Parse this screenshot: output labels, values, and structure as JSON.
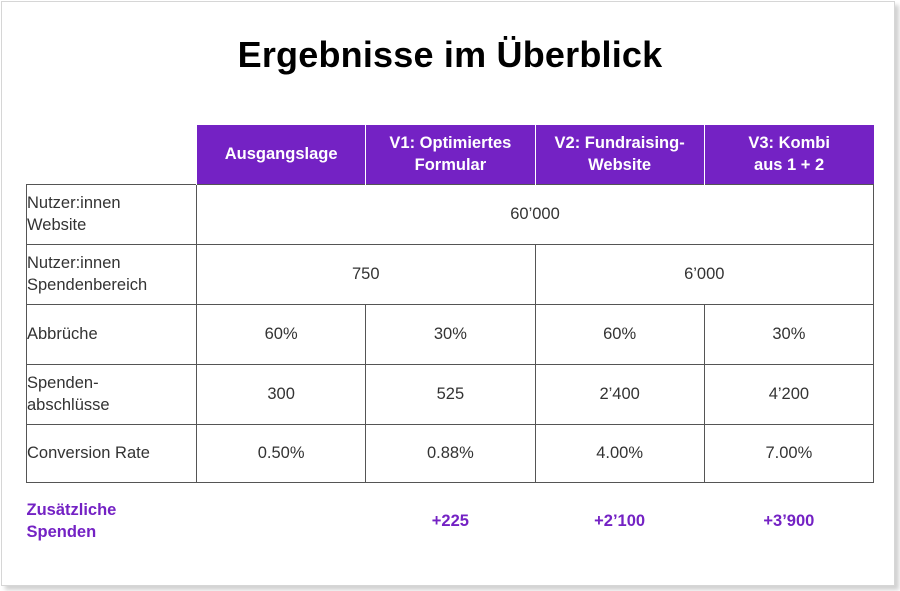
{
  "title": "Ergebnisse im Überblick",
  "colors": {
    "accent": "#7422c4",
    "header_text": "#ffffff",
    "body_text": "#333333",
    "border": "#555555"
  },
  "table": {
    "headers": [
      "Ausgangslage",
      "V1: Optimiertes\nFormular",
      "V2: Fundraising-\nWebsite",
      "V3: Kombi\naus 1 + 2"
    ],
    "rows": {
      "nutzer_website": {
        "label": "Nutzer:innen\nWebsite",
        "value_all": "60’000"
      },
      "nutzer_spendenbereich": {
        "label": "Nutzer:innen\nSpendenbereich",
        "value_a_v1": "750",
        "value_v2_v3": "6’000"
      },
      "abbrueche": {
        "label": "Abbrüche",
        "values": [
          "60%",
          "30%",
          "60%",
          "30%"
        ]
      },
      "spendenabschluesse": {
        "label": "Spenden-\nabschlüsse",
        "values": [
          "300",
          "525",
          "2’400",
          "4’200"
        ]
      },
      "conversion_rate": {
        "label": "Conversion Rate",
        "values": [
          "0.50%",
          "0.88%",
          "4.00%",
          "7.00%"
        ]
      },
      "zusaetzliche_spenden": {
        "label": "Zusätzliche\nSpenden",
        "values": [
          "",
          "+225",
          "+2’100",
          "+3’900"
        ]
      }
    }
  }
}
